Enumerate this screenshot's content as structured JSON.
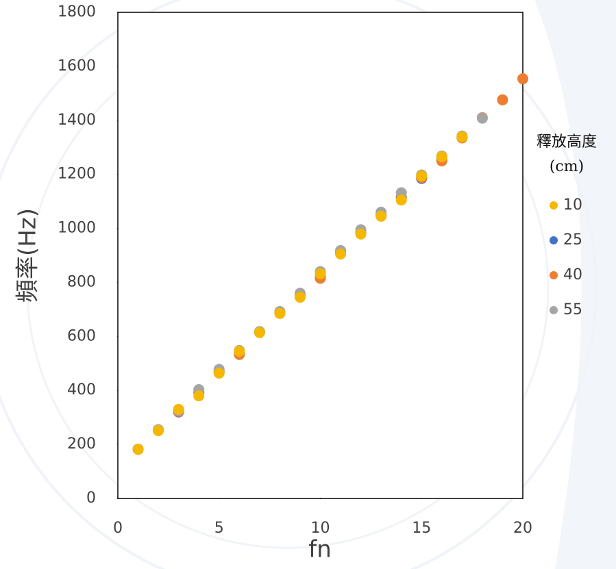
{
  "chart_data": {
    "type": "scatter",
    "x_label": "fn",
    "y_label": "頻率(Hz)",
    "legend_title": "釋放高度",
    "legend_unit": "(cm)",
    "legend_position": "right",
    "xlim": [
      0,
      20
    ],
    "xticks": [
      0,
      5,
      10,
      15,
      20
    ],
    "ylim": [
      0,
      1800
    ],
    "yticks": [
      0,
      200,
      400,
      600,
      800,
      1000,
      1200,
      1400,
      1600,
      1800
    ],
    "series": [
      {
        "name": "10",
        "color": "#f5b800",
        "x": [
          1,
          2,
          3,
          4,
          5,
          6,
          7,
          8,
          9,
          10,
          11,
          12,
          13,
          14,
          15,
          16,
          17
        ],
        "values": [
          182,
          251,
          330,
          380,
          464,
          545,
          614,
          685,
          745,
          832,
          905,
          979,
          1045,
          1105,
          1194,
          1265,
          1339
        ]
      },
      {
        "name": "25",
        "color": "#4472c4",
        "x": [
          1,
          2,
          3,
          4,
          5,
          6,
          7,
          8,
          9,
          10,
          11,
          12,
          13,
          14,
          15,
          16,
          17
        ],
        "values": [
          182,
          253,
          320,
          395,
          470,
          538,
          616,
          688,
          752,
          820,
          910,
          985,
          1050,
          1115,
          1185,
          1255,
          1338
        ]
      },
      {
        "name": "40",
        "color": "#ed7d31",
        "x": [
          1,
          2,
          3,
          4,
          5,
          6,
          7,
          8,
          9,
          10,
          11,
          12,
          13,
          14,
          15,
          16,
          17,
          18,
          19,
          20
        ],
        "values": [
          182,
          252,
          322,
          390,
          468,
          533,
          615,
          686,
          750,
          815,
          908,
          982,
          1048,
          1110,
          1188,
          1250,
          1335,
          1410,
          1476,
          1554
        ]
      },
      {
        "name": "55",
        "color": "#a5a5a5",
        "x": [
          1,
          2,
          3,
          4,
          5,
          6,
          7,
          8,
          9,
          10,
          11,
          12,
          13,
          14,
          15,
          16,
          17,
          18
        ],
        "values": [
          183,
          255,
          325,
          403,
          478,
          548,
          618,
          692,
          760,
          840,
          918,
          995,
          1060,
          1132,
          1198,
          1268,
          1342,
          1408
        ]
      }
    ]
  }
}
